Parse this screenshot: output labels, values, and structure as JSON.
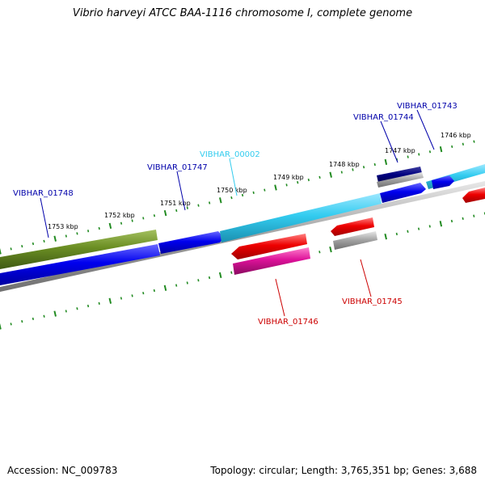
{
  "title": "Vibrio harveyi ATCC BAA-1116 chromosome I, complete genome",
  "accession": "Accession: NC_009783",
  "summary": "Topology: circular; Length: 3,765,351 bp; Genes: 3,688",
  "colors": {
    "tick": "#228B22",
    "backbone": "#808080",
    "cds_forward": "#0000EE",
    "cds_forward_alt": "#33CCF0",
    "cds_reverse": "#EE0000",
    "cds_reverse_alt": "#DD1199",
    "gene_olive": "#6B8E23",
    "gene_navy": "#000080",
    "label_blue": "#0000AA",
    "label_cyan": "#33CCEE",
    "label_red": "#CC0000"
  },
  "ruler_labels": [
    "1746 kbp",
    "1747 kbp",
    "1748 kbp",
    "1749 kbp",
    "1750 kbp",
    "1751 kbp",
    "1752 kbp",
    "1753 kbp"
  ],
  "gene_labels": [
    {
      "id": "g01743",
      "text": "VIBHAR_01743",
      "color": "label_blue"
    },
    {
      "id": "g01744",
      "text": "VIBHAR_01744",
      "color": "label_blue"
    },
    {
      "id": "g00002",
      "text": "VIBHAR_00002",
      "color": "label_cyan"
    },
    {
      "id": "g01747",
      "text": "VIBHAR_01747",
      "color": "label_blue"
    },
    {
      "id": "g01748",
      "text": "VIBHAR_01748",
      "color": "label_blue"
    },
    {
      "id": "g01745",
      "text": "VIBHAR_01745",
      "color": "label_red"
    },
    {
      "id": "g01746",
      "text": "VIBHAR_01746",
      "color": "label_red"
    }
  ]
}
